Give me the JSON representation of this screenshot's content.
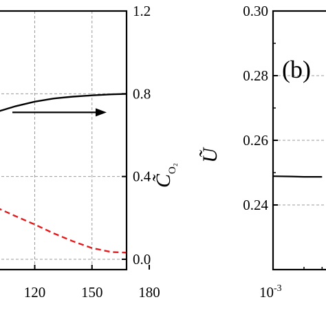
{
  "chart_data": [
    {
      "type": "line",
      "panel": "",
      "x_visible_range": [
        100,
        180
      ],
      "xlim": [
        100,
        180
      ],
      "x_tick_labels": [
        "120",
        "150",
        "180"
      ],
      "x_ticks": [
        120,
        150,
        180
      ],
      "y_right_label": "C̃",
      "y_right_label_sub": "O₂",
      "ylim_right": [
        -0.05,
        1.2
      ],
      "y_right_ticks": [
        0.0,
        0.4,
        0.8,
        1.2
      ],
      "y_right_tick_labels": [
        "0.0",
        "0.4",
        "0.8",
        "1.2"
      ],
      "grid": true,
      "series": [
        {
          "style": "solid",
          "color": "#000000",
          "axis": "right",
          "x": [
            100,
            110,
            120,
            130,
            140,
            150,
            160,
            168
          ],
          "y": [
            0.712,
            0.74,
            0.762,
            0.777,
            0.786,
            0.792,
            0.797,
            0.799
          ]
        },
        {
          "style": "dashed",
          "color": "#e31a1c",
          "axis": "left",
          "x": [
            100,
            110,
            120,
            130,
            140,
            150,
            160,
            168
          ],
          "y": [
            0.25,
            0.208,
            0.168,
            0.125,
            0.087,
            0.054,
            0.035,
            0.032
          ]
        }
      ],
      "annotation": {
        "type": "arrow",
        "direction": "right",
        "points_to_axis": "right"
      }
    },
    {
      "type": "line",
      "panel": "(b)",
      "y_label": "Ũ",
      "ylim": [
        0.22,
        0.3
      ],
      "y_ticks": [
        0.24,
        0.26,
        0.28,
        0.3
      ],
      "y_tick_labels": [
        "0.24",
        "0.26",
        "0.28",
        "0.30"
      ],
      "x_scale": "log",
      "x_tick_labels": [
        "10-3"
      ],
      "x_tick_base": "10",
      "x_tick_exp": "-3",
      "grid": true,
      "series": [
        {
          "style": "solid",
          "color": "#000000",
          "x": [
            0.001,
            0.0015,
            0.002,
            0.0025,
            0.003
          ],
          "y": [
            0.2489,
            0.2488,
            0.2487,
            0.2487,
            0.2487
          ]
        }
      ]
    }
  ]
}
